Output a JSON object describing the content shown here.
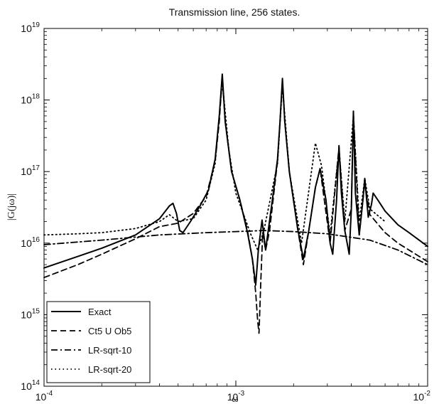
{
  "chart_data": {
    "type": "line",
    "title": "Transmission line, 256 states.",
    "xlabel": "ω",
    "ylabel": "|G(jω)|",
    "xscale": "log",
    "yscale": "log",
    "xlim": [
      0.0001,
      0.01
    ],
    "ylim": [
      100000000000000.0,
      1e+19
    ],
    "grid": false,
    "legend_position": "bottom-left",
    "x_ticks": [
      {
        "base": "10",
        "exp": "-4",
        "value": 0.0001
      },
      {
        "base": "10",
        "exp": "-3",
        "value": 0.001
      },
      {
        "base": "10",
        "exp": "-2",
        "value": 0.01
      }
    ],
    "y_ticks": [
      {
        "base": "10",
        "exp": "14",
        "value": 100000000000000.0
      },
      {
        "base": "10",
        "exp": "15",
        "value": 1000000000000000.0
      },
      {
        "base": "10",
        "exp": "16",
        "value": 1e+16
      },
      {
        "base": "10",
        "exp": "17",
        "value": 1e+17
      },
      {
        "base": "10",
        "exp": "18",
        "value": 1e+18
      },
      {
        "base": "10",
        "exp": "19",
        "value": 1e+19
      }
    ],
    "series": [
      {
        "name": "Exact",
        "style": "solid",
        "color": "#000000",
        "points": [
          [
            0.0001,
            4500000000000000.0
          ],
          [
            0.00015,
            6500000000000000.0
          ],
          [
            0.0002,
            8500000000000000.0
          ],
          [
            0.0003,
            1.3e+16
          ],
          [
            0.0004,
            2.2e+16
          ],
          [
            0.00045,
            3.3e+16
          ],
          [
            0.00047,
            3.6e+16
          ],
          [
            0.00049,
            2.6e+16
          ],
          [
            0.00051,
            1.5e+16
          ],
          [
            0.00053,
            1.4e+16
          ],
          [
            0.00058,
            2e+16
          ],
          [
            0.00065,
            3.3e+16
          ],
          [
            0.00072,
            5.5e+16
          ],
          [
            0.00078,
            1.5e+17
          ],
          [
            0.00082,
            6e+17
          ],
          [
            0.00085,
            2.3e+18
          ],
          [
            0.00088,
            5e+17
          ],
          [
            0.00095,
            1e+17
          ],
          [
            0.00105,
            4e+16
          ],
          [
            0.00115,
            1.4e+16
          ],
          [
            0.00122,
            6000000000000000.0
          ],
          [
            0.00127,
            2600000000000000.0
          ],
          [
            0.00131,
            8000000000000000.0
          ],
          [
            0.00137,
            2.1e+16
          ],
          [
            0.00143,
            8000000000000000.0
          ],
          [
            0.00148,
            1.6e+16
          ],
          [
            0.00155,
            4e+16
          ],
          [
            0.00165,
            1.5e+17
          ],
          [
            0.0017,
            5e+17
          ],
          [
            0.00175,
            2e+18
          ],
          [
            0.0018,
            5e+17
          ],
          [
            0.0019,
            1e+17
          ],
          [
            0.0021,
            1.6e+16
          ],
          [
            0.00225,
            6000000000000000.0
          ],
          [
            0.0024,
            1.5e+16
          ],
          [
            0.0026,
            6e+16
          ],
          [
            0.00275,
            1.1e+17
          ],
          [
            0.00295,
            4e+16
          ],
          [
            0.0031,
            1e+16
          ],
          [
            0.0032,
            7000000000000000.0
          ],
          [
            0.00335,
            4e+16
          ],
          [
            0.00345,
            2.3e+17
          ],
          [
            0.00355,
            5e+16
          ],
          [
            0.0037,
            1.5e+16
          ],
          [
            0.0039,
            7000000000000000.0
          ],
          [
            0.004,
            3e+16
          ],
          [
            0.0041,
            7e+17
          ],
          [
            0.0042,
            5e+16
          ],
          [
            0.0044,
            1.3e+16
          ],
          [
            0.0046,
            4e+16
          ],
          [
            0.0047,
            8e+16
          ],
          [
            0.0049,
            2.3e+16
          ],
          [
            0.0051,
            3.5e+16
          ],
          [
            0.0052,
            5e+16
          ],
          [
            0.0055,
            4e+16
          ],
          [
            0.006,
            2.8e+16
          ],
          [
            0.007,
            1.8e+16
          ],
          [
            0.008,
            1.4e+16
          ],
          [
            0.01,
            9000000000000000.0
          ]
        ]
      },
      {
        "name": "Ct5 U Ob5",
        "style": "dashed",
        "color": "#000000",
        "points": [
          [
            0.0001,
            3300000000000000.0
          ],
          [
            0.00015,
            5000000000000000.0
          ],
          [
            0.0002,
            7000000000000000.0
          ],
          [
            0.0003,
            1.15e+16
          ],
          [
            0.0004,
            1.7e+16
          ],
          [
            0.0005,
            1.9e+16
          ],
          [
            0.0006,
            2.6e+16
          ],
          [
            0.0007,
            4.5e+16
          ],
          [
            0.00078,
            1.4e+17
          ],
          [
            0.00082,
            5e+17
          ],
          [
            0.00085,
            2.1e+18
          ],
          [
            0.00088,
            5e+17
          ],
          [
            0.00095,
            1e+17
          ],
          [
            0.00105,
            4e+16
          ],
          [
            0.00115,
            1.5e+16
          ],
          [
            0.00122,
            6000000000000000.0
          ],
          [
            0.00127,
            2000000000000000.0
          ],
          [
            0.0013,
            800000000000000.0
          ],
          [
            0.00132,
            550000000000000.0
          ],
          [
            0.00135,
            3000000000000000.0
          ],
          [
            0.00138,
            1.4e+16
          ],
          [
            0.00143,
            8000000000000000.0
          ],
          [
            0.0015,
            1.5e+16
          ],
          [
            0.00165,
            1.4e+17
          ],
          [
            0.00175,
            1.8e+18
          ],
          [
            0.0018,
            5e+17
          ],
          [
            0.0019,
            1e+17
          ],
          [
            0.0021,
            1.6e+16
          ],
          [
            0.00225,
            5000000000000000.0
          ],
          [
            0.0024,
            1.5e+16
          ],
          [
            0.0026,
            6e+16
          ],
          [
            0.00275,
            1.1e+17
          ],
          [
            0.0031,
            1e+16
          ],
          [
            0.00345,
            2.2e+17
          ],
          [
            0.0037,
            1.5e+16
          ],
          [
            0.004,
            3e+16
          ],
          [
            0.0041,
            6.5e+17
          ],
          [
            0.0044,
            1.3e+16
          ],
          [
            0.0047,
            7e+16
          ],
          [
            0.005,
            2.5e+16
          ],
          [
            0.006,
            1.4e+16
          ],
          [
            0.007,
            1e+16
          ],
          [
            0.01,
            5500000000000000.0
          ]
        ]
      },
      {
        "name": "LR-sqrt-10",
        "style": "dashdot",
        "color": "#000000",
        "points": [
          [
            0.0001,
            9500000000000000.0
          ],
          [
            0.0002,
            1.1e+16
          ],
          [
            0.0004,
            1.3e+16
          ],
          [
            0.0007,
            1.4e+16
          ],
          [
            0.001,
            1.45e+16
          ],
          [
            0.0014,
            1.5e+16
          ],
          [
            0.002,
            1.45e+16
          ],
          [
            0.003,
            1.35e+16
          ],
          [
            0.005,
            1.1e+16
          ],
          [
            0.007,
            8000000000000000.0
          ],
          [
            0.01,
            5000000000000000.0
          ]
        ]
      },
      {
        "name": "LR-sqrt-20",
        "style": "dotted",
        "color": "#000000",
        "points": [
          [
            0.0001,
            1.3e+16
          ],
          [
            0.00015,
            1.35e+16
          ],
          [
            0.0002,
            1.4e+16
          ],
          [
            0.0003,
            1.6e+16
          ],
          [
            0.0004,
            2e+16
          ],
          [
            0.00045,
            2.5e+16
          ],
          [
            0.0005,
            2e+16
          ],
          [
            0.0006,
            2.2e+16
          ],
          [
            0.0007,
            4e+16
          ],
          [
            0.00078,
            1.3e+17
          ],
          [
            0.00085,
            1.8e+18
          ],
          [
            0.00092,
            2e+17
          ],
          [
            0.001,
            5e+16
          ],
          [
            0.0012,
            1.3e+16
          ],
          [
            0.0013,
            8000000000000000.0
          ],
          [
            0.0014,
            1.5e+16
          ],
          [
            0.00165,
            1.3e+17
          ],
          [
            0.00175,
            1.6e+18
          ],
          [
            0.0019,
            1e+17
          ],
          [
            0.0022,
            1e+16
          ],
          [
            0.0026,
            2.5e+17
          ],
          [
            0.0028,
            1.2e+17
          ],
          [
            0.0031,
            1.3e+16
          ],
          [
            0.00345,
            2.1e+17
          ],
          [
            0.0037,
            2e+16
          ],
          [
            0.0041,
            6e+17
          ],
          [
            0.0044,
            2e+16
          ],
          [
            0.0047,
            8e+16
          ],
          [
            0.005,
            3e+16
          ],
          [
            0.006,
            2e+16
          ]
        ]
      }
    ]
  }
}
